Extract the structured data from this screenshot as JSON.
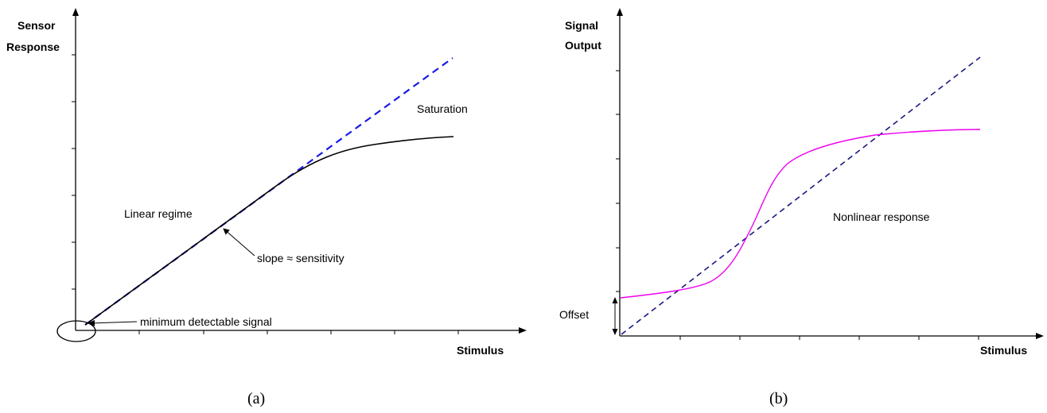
{
  "panel_a": {
    "y_axis_label_line1": "Sensor",
    "y_axis_label_line2": "Response",
    "x_axis_label": "Stimulus",
    "annotation_saturation": "Saturation",
    "annotation_linear": "Linear regime",
    "annotation_slope": "slope ≈ sensitivity",
    "annotation_minimum": "minimum detectable signal",
    "caption": "(a)",
    "colors": {
      "response_curve": "#000000",
      "linear_fit": "#1a1ae6",
      "axes": "#000000"
    }
  },
  "panel_b": {
    "y_axis_label_line1": "Signal",
    "y_axis_label_line2": "Output",
    "x_axis_label": "Stimulus",
    "annotation_nonlinear": "Nonlinear response",
    "annotation_offset": "Offset",
    "caption": "(b)",
    "colors": {
      "response_curve": "#ee00ee",
      "ideal_linear": "#1a1a80",
      "axes": "#000000"
    }
  }
}
